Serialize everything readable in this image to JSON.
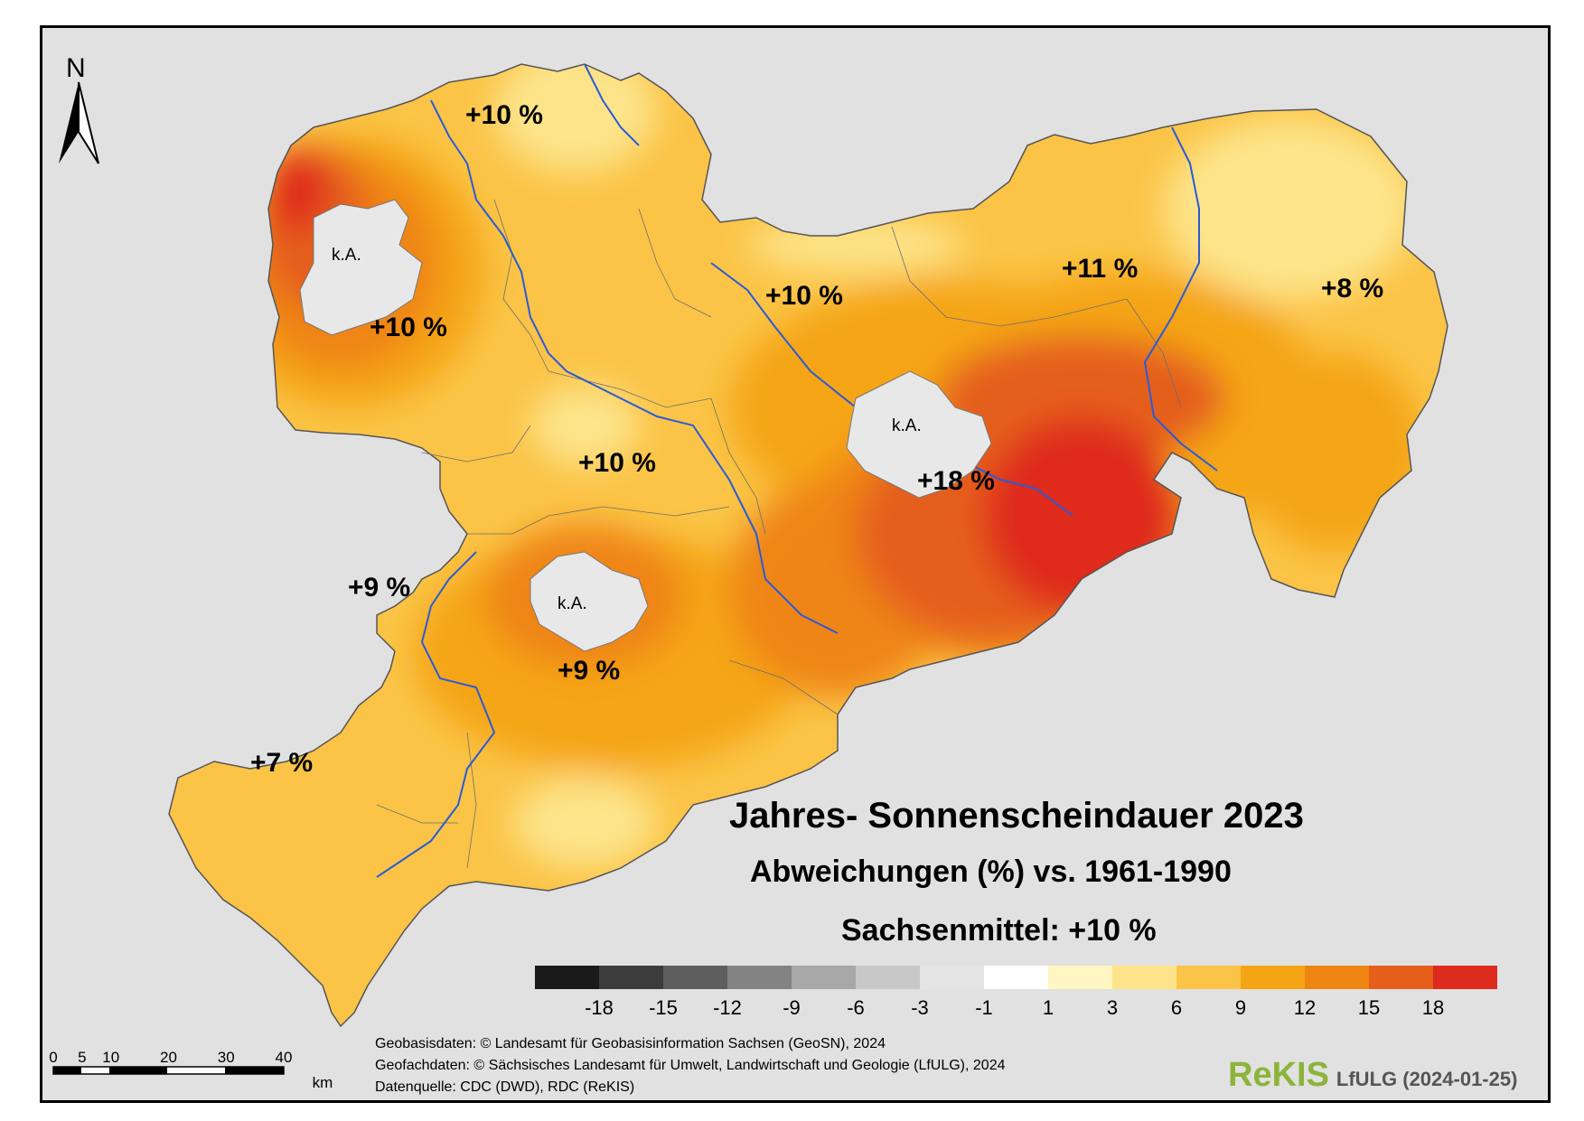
{
  "title": "Jahres- Sonnenscheindauer 2023",
  "subtitle": "Abweichungen (%) vs. 1961-1990",
  "state_mean": "Sachsenmittel: +10 %",
  "north_label": "N",
  "no_data_label": "k.A.",
  "region_labels": [
    "+10 %",
    "+10 %",
    "+10 %",
    "+11 %",
    "+8 %",
    "+10 %",
    "+18 %",
    "+9 %",
    "+9 %",
    "+7 %"
  ],
  "legend": {
    "colors": [
      "#1a1a1a",
      "#3c3c3c",
      "#5e5e5e",
      "#838383",
      "#a8a8a8",
      "#c8c8c8",
      "#e4e4e4",
      "#ffffff",
      "#fff6c2",
      "#fde48a",
      "#fbc447",
      "#f5a514",
      "#ef8513",
      "#e55e1a",
      "#df2a1e"
    ],
    "tick_labels": [
      "-18",
      "-15",
      "-12",
      "-9",
      "-6",
      "-3",
      "-1",
      "1",
      "3",
      "6",
      "9",
      "12",
      "15",
      "18"
    ]
  },
  "scale_bar": {
    "labels": [
      "0",
      "5",
      "10",
      "20",
      "30",
      "40"
    ],
    "unit": "km"
  },
  "credits": [
    "Geobasisdaten: © Landesamt für Geobasisinformation Sachsen (GeoSN), 2024",
    "Geofachdaten: © Sächsisches Landesamt für Umwelt, Landwirtschaft und Geologie (LfULG), 2024",
    "Datenquelle: CDC (DWD), RDC (ReKIS)"
  ],
  "logo_text": "ReKIS",
  "logo_org": "LfULG (2024-01-25)"
}
